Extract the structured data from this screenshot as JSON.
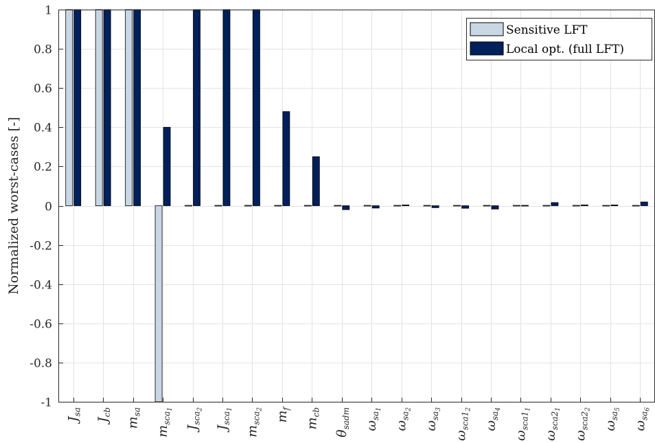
{
  "chart_data": {
    "type": "bar",
    "ylabel": "Normalized worst-cases [-]",
    "xlabel": "",
    "ylim": [
      -1,
      1
    ],
    "yticks": [
      1,
      0.8,
      0.6,
      0.4,
      0.2,
      0,
      -0.2,
      -0.4,
      -0.6,
      -0.8,
      -1
    ],
    "ytick_labels": [
      "1",
      "0.8",
      "0.6",
      "0.4",
      "0.2",
      "0",
      "-0.2",
      "-0.4",
      "-0.6",
      "-0.8",
      "-1"
    ],
    "grid": true,
    "legend_position": "top-right",
    "categories": [
      {
        "label": "J_sa",
        "base": "J",
        "sub": "sa"
      },
      {
        "label": "J_cb",
        "base": "J",
        "sub": "cb"
      },
      {
        "label": "m_sa",
        "base": "m",
        "sub": "sa"
      },
      {
        "label": "m_sca1",
        "base": "m",
        "sub": "sca",
        "subsub": "1"
      },
      {
        "label": "J_sca2",
        "base": "J",
        "sub": "sca",
        "subsub": "2"
      },
      {
        "label": "J_sca1",
        "base": "J",
        "sub": "sca",
        "subsub": "1"
      },
      {
        "label": "m_sca2",
        "base": "m",
        "sub": "sca",
        "subsub": "2"
      },
      {
        "label": "m_f",
        "base": "m",
        "sub": "f"
      },
      {
        "label": "m_cb",
        "base": "m",
        "sub": "cb"
      },
      {
        "label": "θ_sadm",
        "base": "θ",
        "sub": "sadm"
      },
      {
        "label": "ω_sa1",
        "base": "ω",
        "sub": "sa",
        "subsub": "1"
      },
      {
        "label": "ω_sa2",
        "base": "ω",
        "sub": "sa",
        "subsub": "2"
      },
      {
        "label": "ω_sa3",
        "base": "ω",
        "sub": "sa",
        "subsub": "3"
      },
      {
        "label": "ω_sca1_2",
        "base": "ω",
        "sub": "sca1",
        "subsub": "2"
      },
      {
        "label": "ω_sa4",
        "base": "ω",
        "sub": "sa",
        "subsub": "4"
      },
      {
        "label": "ω_sca1_1",
        "base": "ω",
        "sub": "sca1",
        "subsub": "1"
      },
      {
        "label": "ω_sca2_1",
        "base": "ω",
        "sub": "sca2",
        "subsub": "1"
      },
      {
        "label": "ω_sca2_2",
        "base": "ω",
        "sub": "sca2",
        "subsub": "2"
      },
      {
        "label": "ω_sa5",
        "base": "ω",
        "sub": "sa",
        "subsub": "5"
      },
      {
        "label": "ω_sa6",
        "base": "ω",
        "sub": "sa",
        "subsub": "6"
      }
    ],
    "series": [
      {
        "name": "Sensitive LFT",
        "color": "#c9d6e3",
        "values": [
          1,
          1,
          1,
          -1,
          0,
          0,
          0,
          0,
          0,
          0,
          0,
          0,
          0,
          0,
          0,
          0,
          0,
          0,
          0,
          0
        ]
      },
      {
        "name": "Local opt. (full LFT)",
        "color": "#00205b",
        "values": [
          1,
          1,
          1,
          0.4,
          1,
          1,
          1,
          0.48,
          0.25,
          -0.02,
          -0.012,
          0.004,
          -0.01,
          -0.013,
          -0.017,
          0.003,
          0.016,
          0.004,
          0.004,
          0.019
        ]
      }
    ]
  }
}
